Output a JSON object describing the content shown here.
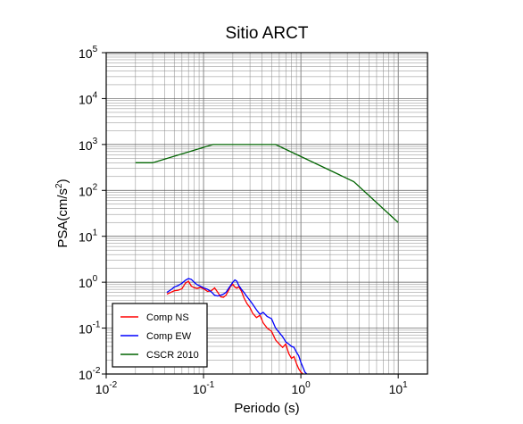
{
  "chart_data": {
    "type": "line",
    "title": "Sitio ARCT",
    "xlabel": "Periodo (s)",
    "ylabel_main": "PSA(cm/s",
    "ylabel_sup": "2",
    "ylabel_close": ")",
    "x_scale": "log",
    "y_scale": "log",
    "xlim": [
      0.01,
      20
    ],
    "ylim": [
      0.01,
      100000
    ],
    "grid": true,
    "legend_position": "bottom-left",
    "x_ticks": [
      {
        "value": 0.01,
        "base": "10",
        "exp": "-2"
      },
      {
        "value": 0.1,
        "base": "10",
        "exp": "-1"
      },
      {
        "value": 1,
        "base": "10",
        "exp": "0"
      },
      {
        "value": 10,
        "base": "10",
        "exp": "1"
      }
    ],
    "y_ticks": [
      {
        "value": 0.01,
        "base": "10",
        "exp": "-2"
      },
      {
        "value": 0.1,
        "base": "10",
        "exp": "-1"
      },
      {
        "value": 1,
        "base": "10",
        "exp": "0"
      },
      {
        "value": 10,
        "base": "10",
        "exp": "1"
      },
      {
        "value": 100,
        "base": "10",
        "exp": "2"
      },
      {
        "value": 1000,
        "base": "10",
        "exp": "3"
      },
      {
        "value": 10000,
        "base": "10",
        "exp": "4"
      },
      {
        "value": 100000,
        "base": "10",
        "exp": "5"
      }
    ],
    "series": [
      {
        "name": "Comp NS",
        "color": "#ff0000",
        "points": [
          [
            0.042,
            0.55
          ],
          [
            0.046,
            0.6
          ],
          [
            0.05,
            0.65
          ],
          [
            0.055,
            0.67
          ],
          [
            0.06,
            0.72
          ],
          [
            0.065,
            0.95
          ],
          [
            0.07,
            1.05
          ],
          [
            0.075,
            0.82
          ],
          [
            0.08,
            0.76
          ],
          [
            0.086,
            0.73
          ],
          [
            0.093,
            0.77
          ],
          [
            0.1,
            0.72
          ],
          [
            0.11,
            0.63
          ],
          [
            0.12,
            0.65
          ],
          [
            0.13,
            0.75
          ],
          [
            0.14,
            0.6
          ],
          [
            0.15,
            0.48
          ],
          [
            0.16,
            0.47
          ],
          [
            0.17,
            0.52
          ],
          [
            0.18,
            0.65
          ],
          [
            0.19,
            0.82
          ],
          [
            0.2,
            0.9
          ],
          [
            0.21,
            0.78
          ],
          [
            0.22,
            0.74
          ],
          [
            0.23,
            0.8
          ],
          [
            0.245,
            0.64
          ],
          [
            0.26,
            0.46
          ],
          [
            0.28,
            0.34
          ],
          [
            0.3,
            0.28
          ],
          [
            0.32,
            0.21
          ],
          [
            0.35,
            0.17
          ],
          [
            0.38,
            0.19
          ],
          [
            0.41,
            0.13
          ],
          [
            0.45,
            0.1
          ],
          [
            0.5,
            0.085
          ],
          [
            0.55,
            0.055
          ],
          [
            0.6,
            0.045
          ],
          [
            0.65,
            0.038
          ],
          [
            0.7,
            0.045
          ],
          [
            0.75,
            0.028
          ],
          [
            0.8,
            0.022
          ],
          [
            0.85,
            0.024
          ],
          [
            0.9,
            0.017
          ],
          [
            0.95,
            0.013
          ],
          [
            1.0,
            0.011
          ],
          [
            1.05,
            0.01
          ]
        ]
      },
      {
        "name": "Comp EW",
        "color": "#0000ff",
        "points": [
          [
            0.042,
            0.6
          ],
          [
            0.046,
            0.68
          ],
          [
            0.05,
            0.78
          ],
          [
            0.055,
            0.85
          ],
          [
            0.06,
            0.95
          ],
          [
            0.065,
            1.1
          ],
          [
            0.07,
            1.2
          ],
          [
            0.075,
            1.15
          ],
          [
            0.08,
            1.0
          ],
          [
            0.086,
            0.88
          ],
          [
            0.093,
            0.82
          ],
          [
            0.1,
            0.75
          ],
          [
            0.11,
            0.7
          ],
          [
            0.12,
            0.62
          ],
          [
            0.13,
            0.52
          ],
          [
            0.14,
            0.5
          ],
          [
            0.15,
            0.52
          ],
          [
            0.16,
            0.55
          ],
          [
            0.17,
            0.6
          ],
          [
            0.18,
            0.72
          ],
          [
            0.19,
            0.85
          ],
          [
            0.2,
            1.0
          ],
          [
            0.21,
            1.12
          ],
          [
            0.22,
            1.05
          ],
          [
            0.23,
            0.85
          ],
          [
            0.245,
            0.7
          ],
          [
            0.26,
            0.6
          ],
          [
            0.28,
            0.48
          ],
          [
            0.3,
            0.4
          ],
          [
            0.32,
            0.33
          ],
          [
            0.35,
            0.25
          ],
          [
            0.38,
            0.2
          ],
          [
            0.41,
            0.22
          ],
          [
            0.45,
            0.18
          ],
          [
            0.5,
            0.16
          ],
          [
            0.55,
            0.1
          ],
          [
            0.6,
            0.08
          ],
          [
            0.65,
            0.065
          ],
          [
            0.7,
            0.05
          ],
          [
            0.75,
            0.045
          ],
          [
            0.8,
            0.04
          ],
          [
            0.85,
            0.038
          ],
          [
            0.9,
            0.03
          ],
          [
            0.95,
            0.025
          ],
          [
            1.0,
            0.018
          ],
          [
            1.05,
            0.014
          ],
          [
            1.1,
            0.011
          ],
          [
            1.15,
            0.01
          ]
        ]
      },
      {
        "name": "CSCR 2010",
        "color": "#006400",
        "points": [
          [
            0.02,
            400
          ],
          [
            0.03,
            400
          ],
          [
            0.125,
            1000
          ],
          [
            0.55,
            1000
          ],
          [
            3.5,
            155
          ],
          [
            10,
            20
          ]
        ]
      }
    ]
  }
}
